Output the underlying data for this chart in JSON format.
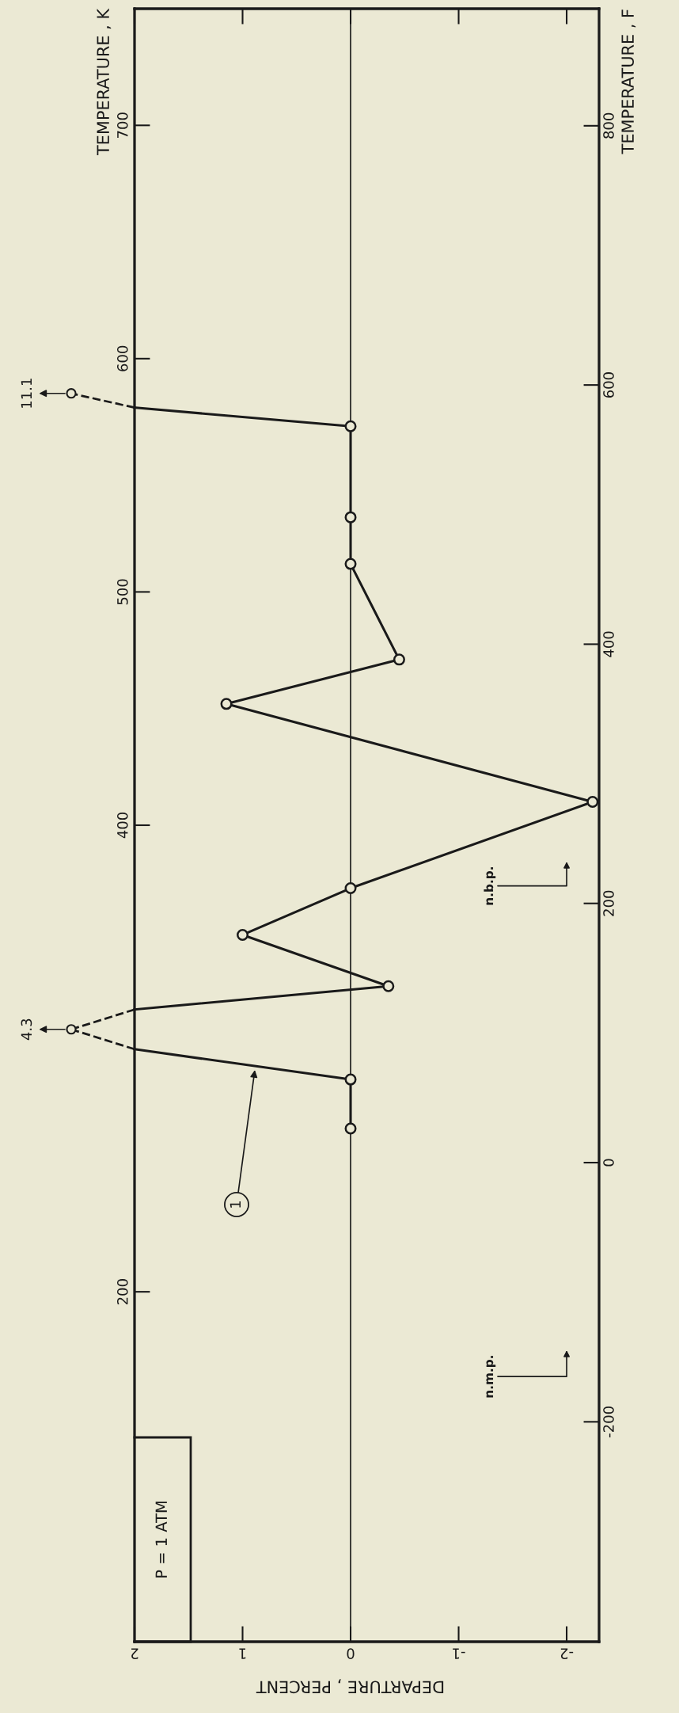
{
  "chart_data": {
    "type": "line",
    "xlabel": "DEPARTURE , PERCENT",
    "ylabel": "TEMPERATURE , K",
    "y2label": "TEMPERATURE , F",
    "series": [
      {
        "color": "#1a1a1a",
        "x": [
          0,
          0,
          2,
          null,
          2,
          -0.35,
          1.0,
          0,
          -2.24,
          1.15,
          -0.45,
          0,
          0,
          0,
          2,
          null
        ],
        "values": [
          270,
          291,
          304,
          null,
          321,
          331,
          353,
          373,
          410,
          452,
          471,
          512,
          532,
          571,
          579,
          null
        ]
      }
    ],
    "marker": "circle",
    "line_style": "solid",
    "xlim": [
      2,
      -2.3
    ],
    "xticks": [
      2,
      1,
      0,
      -1,
      -2
    ],
    "ylim": [
      50,
      750
    ],
    "yticks": [
      200,
      400,
      500,
      600,
      700
    ],
    "y2lim": [
      -369.67,
      890.33
    ],
    "y2ticks": [
      -200,
      0,
      200,
      400,
      600,
      800
    ],
    "ref_lines": [
      {
        "axis": "x",
        "value": 0,
        "color": "#1a1a1a",
        "line_style": "solid"
      }
    ],
    "annotations": [
      "4.3",
      "11.1",
      "1",
      "n.b.p.",
      "n.m.p.",
      "P = 1 ATM"
    ],
    "grid": false,
    "legend": false
  }
}
